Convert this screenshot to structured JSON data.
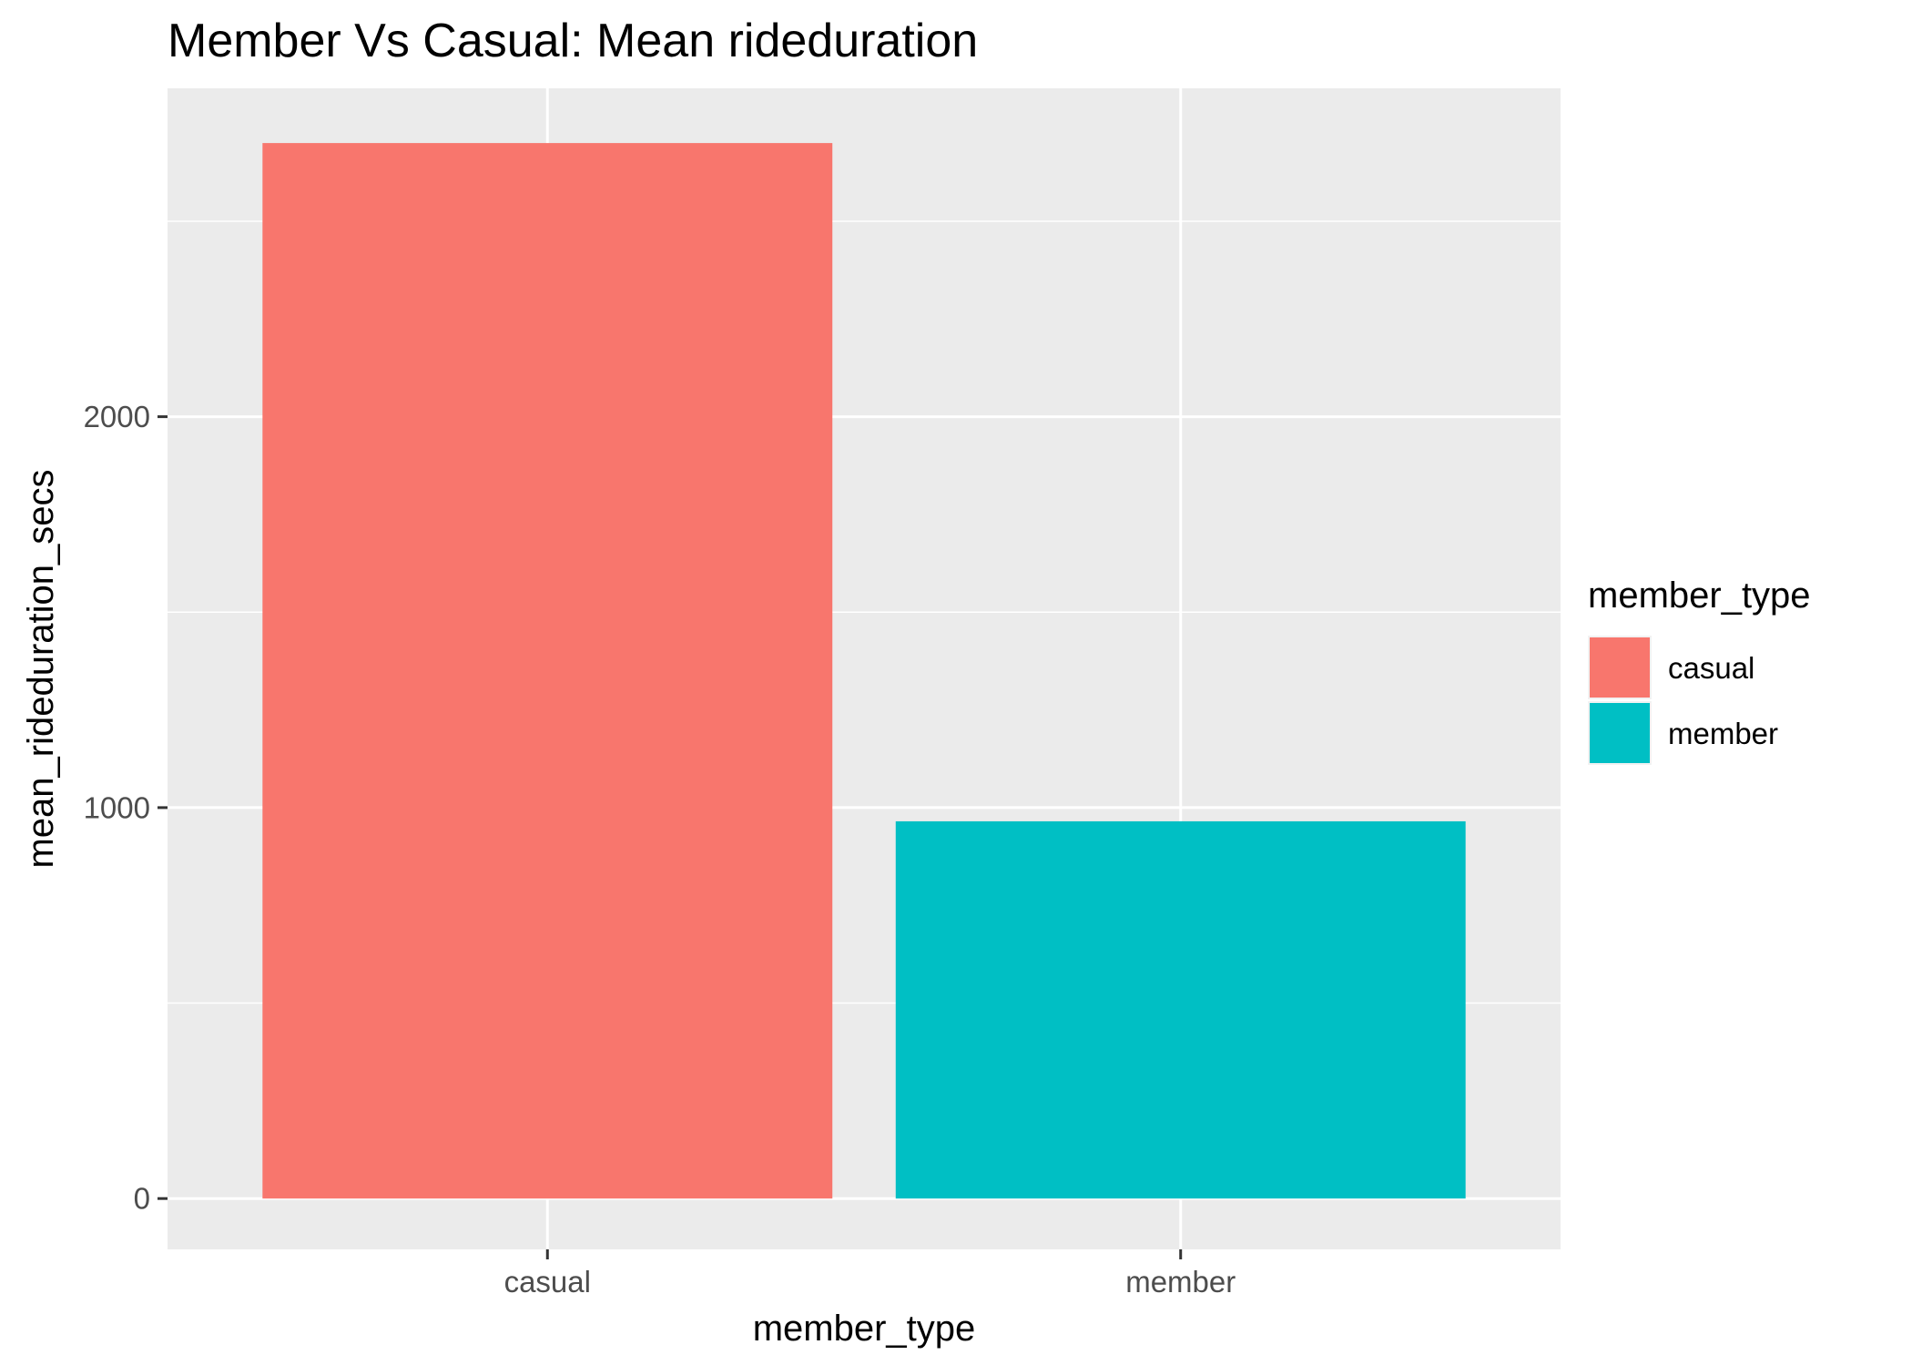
{
  "chart_data": {
    "type": "bar",
    "title": "Member Vs Casual: Mean rideduration",
    "xlabel": "member_type",
    "ylabel": "mean_rideduration_secs",
    "categories": [
      "casual",
      "member"
    ],
    "values": [
      2700,
      965
    ],
    "colors": [
      "#F8766D",
      "#00BFC4"
    ],
    "ylim": [
      -130,
      2840
    ],
    "yticks": [
      0,
      1000,
      2000
    ],
    "grid": true,
    "panel_background": "#EBEBEB",
    "grid_color": "#FFFFFF",
    "legend": {
      "title": "member_type",
      "position": "right",
      "entries": [
        "casual",
        "member"
      ]
    }
  }
}
